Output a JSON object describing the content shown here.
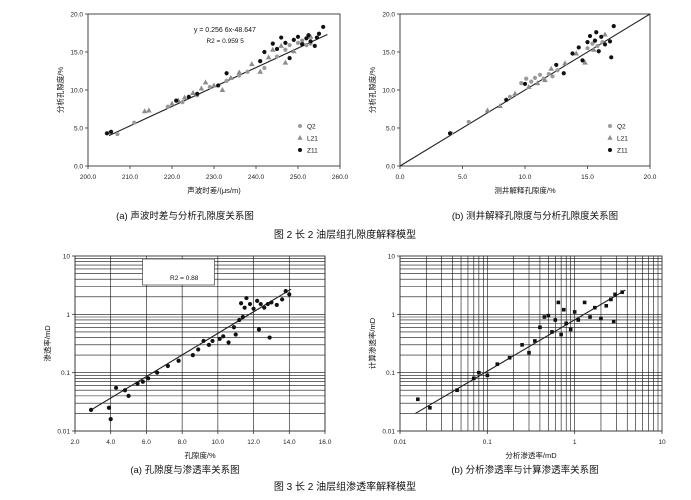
{
  "figure_2": {
    "caption": "图 2  长 2 油层组孔隙度解释模型",
    "subcaptions": [
      "(a) 声波时差与分析孔隙度关系图",
      "(b) 测井解释孔隙度与分析孔隙度关系图"
    ]
  },
  "figure_3": {
    "caption": "图 3  长 2 油层组渗透率解释模型",
    "subcaptions": [
      "(a) 孔隙度与渗透率关系图",
      "(b) 分析渗透率与计算渗透率关系图"
    ]
  },
  "legend_labels": [
    "Q2",
    "L21",
    "Z11"
  ],
  "colors": {
    "Q2": "#9a9a9a",
    "L21": "#8c8c8c",
    "Z11": "#111111",
    "axis": "#333333",
    "grid": "#111111",
    "line": "#222222"
  },
  "chart_data": [
    {
      "id": "2a",
      "type": "scatter",
      "xlabel": "声波时差/(μs/m)",
      "ylabel": "分析孔隙度/%",
      "xlim": [
        200,
        260
      ],
      "ylim": [
        0,
        20
      ],
      "xticks": [
        "200.0",
        "210.0",
        "220.0",
        "230.0",
        "240.0",
        "250.0",
        "260.0"
      ],
      "yticks": [
        "0.0",
        "5.0",
        "10.0",
        "15.0",
        "20.0"
      ],
      "equation": "y = 0.256 6x-48.647",
      "r2": "R2 = 0.959 5",
      "fit": {
        "x": [
          205,
          257
        ],
        "y": [
          4.0,
          17.3
        ]
      },
      "grid": false,
      "legend": "bottom-right",
      "series": [
        {
          "name": "Q2",
          "marker": "circle",
          "points": [
            [
              205.2,
              4.4
            ],
            [
              207,
              4.2
            ],
            [
              211,
              5.7
            ],
            [
              219,
              7.8
            ],
            [
              222.5,
              8.4
            ],
            [
              226,
              9.3
            ],
            [
              229,
              10.4
            ],
            [
              233,
              11.2
            ],
            [
              236,
              11.9
            ],
            [
              238,
              12.4
            ],
            [
              242,
              12.9
            ],
            [
              245,
              14.4
            ],
            [
              247,
              15.3
            ],
            [
              248,
              15.9
            ],
            [
              250,
              16.2
            ],
            [
              251,
              16.5
            ],
            [
              252,
              15.9
            ],
            [
              253,
              16.1
            ]
          ]
        },
        {
          "name": "L21",
          "marker": "triangle",
          "points": [
            [
              213.5,
              7.2
            ],
            [
              214.5,
              7.3
            ],
            [
              220,
              8.2
            ],
            [
              221.5,
              8.6
            ],
            [
              223,
              9.0
            ],
            [
              225,
              9.6
            ],
            [
              227,
              10.2
            ],
            [
              228,
              11.0
            ],
            [
              230,
              10.6
            ],
            [
              232,
              10.0
            ],
            [
              234,
              11.6
            ],
            [
              236,
              12.3
            ],
            [
              239,
              13.4
            ],
            [
              241,
              12.4
            ],
            [
              243,
              14.3
            ],
            [
              244,
              15.3
            ],
            [
              246,
              15.8
            ],
            [
              247,
              13.6
            ],
            [
              249,
              15.1
            ],
            [
              251,
              16.3
            ],
            [
              253,
              17.0
            ]
          ]
        },
        {
          "name": "Z11",
          "marker": "circle",
          "points": [
            [
              204.5,
              4.3
            ],
            [
              205.5,
              4.5
            ],
            [
              221,
              8.6
            ],
            [
              224,
              9.1
            ],
            [
              226,
              9.5
            ],
            [
              231,
              10.6
            ],
            [
              233,
              12.2
            ],
            [
              241,
              13.8
            ],
            [
              242,
              15.0
            ],
            [
              244,
              16.1
            ],
            [
              245,
              15.4
            ],
            [
              246,
              16.9
            ],
            [
              247,
              16.2
            ],
            [
              248,
              14.2
            ],
            [
              249,
              16.6
            ],
            [
              250,
              17.0
            ],
            [
              251,
              16.0
            ],
            [
              252,
              16.8
            ],
            [
              252.5,
              17.2
            ],
            [
              253,
              16.4
            ],
            [
              254,
              15.8
            ],
            [
              254.5,
              16.9
            ],
            [
              255,
              17.4
            ],
            [
              256,
              18.3
            ]
          ]
        }
      ]
    },
    {
      "id": "2b",
      "type": "scatter",
      "xlabel": "测井解释孔隙度/%",
      "ylabel": "分析孔隙度/%",
      "xlim": [
        0,
        20
      ],
      "ylim": [
        0,
        20
      ],
      "xticks": [
        "0.0",
        "5.0",
        "10.0",
        "15.0",
        "20.0"
      ],
      "yticks": [
        "0.0",
        "5.0",
        "10.0",
        "15.0",
        "20.0"
      ],
      "fit": {
        "x": [
          0,
          20
        ],
        "y": [
          0,
          20
        ]
      },
      "grid": false,
      "legend": "bottom-right",
      "series": [
        {
          "name": "Q2",
          "marker": "circle",
          "points": [
            [
              4.1,
              4.3
            ],
            [
              5.5,
              5.8
            ],
            [
              8.8,
              9.1
            ],
            [
              9.7,
              10.9
            ],
            [
              10.1,
              11.5
            ],
            [
              10.5,
              11.1
            ],
            [
              10.8,
              11.6
            ],
            [
              11.2,
              12.0
            ],
            [
              11.5,
              11.5
            ],
            [
              11.9,
              12.1
            ],
            [
              12.2,
              11.8
            ],
            [
              12.6,
              12.6
            ],
            [
              15.0,
              15.5
            ],
            [
              15.4,
              16.1
            ],
            [
              15.8,
              15.8
            ],
            [
              16.2,
              16.3
            ]
          ]
        },
        {
          "name": "L21",
          "marker": "triangle",
          "points": [
            [
              7.0,
              7.3
            ],
            [
              8.0,
              7.9
            ],
            [
              9.2,
              9.5
            ],
            [
              10.3,
              10.4
            ],
            [
              11.0,
              10.9
            ],
            [
              11.6,
              11.3
            ],
            [
              12.1,
              12.8
            ],
            [
              13.2,
              13.5
            ],
            [
              14.1,
              14.8
            ],
            [
              14.8,
              13.6
            ],
            [
              15.5,
              15.3
            ],
            [
              16.4,
              17.3
            ]
          ]
        },
        {
          "name": "Z11",
          "marker": "circle",
          "points": [
            [
              4.0,
              4.3
            ],
            [
              8.5,
              8.7
            ],
            [
              10.0,
              10.8
            ],
            [
              12.5,
              13.3
            ],
            [
              13.1,
              12.2
            ],
            [
              13.8,
              14.8
            ],
            [
              14.3,
              15.6
            ],
            [
              14.6,
              13.9
            ],
            [
              15.0,
              16.3
            ],
            [
              15.2,
              17.1
            ],
            [
              15.6,
              16.5
            ],
            [
              15.9,
              15.1
            ],
            [
              16.1,
              17.0
            ],
            [
              16.4,
              16.0
            ],
            [
              16.8,
              16.4
            ],
            [
              17.1,
              18.4
            ],
            [
              16.9,
              14.3
            ],
            [
              15.7,
              17.6
            ]
          ]
        }
      ]
    },
    {
      "id": "3a",
      "type": "scatter",
      "xlabel": "孔隙度/%",
      "ylabel": "渗透率/mD",
      "xlim": [
        2,
        16
      ],
      "ylim": [
        0.01,
        10
      ],
      "yscale": "log",
      "xticks": [
        "2.0",
        "4.0",
        "6.0",
        "8.0",
        "10.0",
        "12.0",
        "14.0",
        "16.0"
      ],
      "yticks": [
        "0.01",
        "0.1",
        "1",
        "10"
      ],
      "r2": "R2 = 0.88",
      "fit": {
        "x": [
          2.8,
          14.1
        ],
        "y": [
          0.022,
          2.7
        ]
      },
      "grid": true,
      "series": [
        {
          "name": "",
          "marker": "circle",
          "points": [
            [
              2.9,
              0.023
            ],
            [
              3.9,
              0.025
            ],
            [
              4.0,
              0.016
            ],
            [
              4.3,
              0.055
            ],
            [
              4.8,
              0.05
            ],
            [
              5.0,
              0.04
            ],
            [
              5.5,
              0.065
            ],
            [
              5.8,
              0.07
            ],
            [
              6.1,
              0.08
            ],
            [
              6.6,
              0.1
            ],
            [
              7.2,
              0.13
            ],
            [
              7.8,
              0.16
            ],
            [
              8.6,
              0.2
            ],
            [
              8.9,
              0.25
            ],
            [
              9.2,
              0.35
            ],
            [
              9.5,
              0.3
            ],
            [
              9.7,
              0.35
            ],
            [
              10.1,
              0.38
            ],
            [
              10.3,
              0.42
            ],
            [
              10.6,
              0.33
            ],
            [
              10.9,
              0.6
            ],
            [
              11.0,
              0.45
            ],
            [
              11.2,
              0.8
            ],
            [
              11.3,
              1.55
            ],
            [
              11.5,
              1.3
            ],
            [
              11.6,
              1.9
            ],
            [
              11.8,
              1.5
            ],
            [
              12.0,
              1.25
            ],
            [
              12.2,
              1.7
            ],
            [
              12.4,
              1.5
            ],
            [
              12.6,
              1.3
            ],
            [
              12.8,
              1.5
            ],
            [
              13.0,
              1.6
            ],
            [
              13.3,
              1.45
            ],
            [
              13.6,
              1.8
            ],
            [
              13.8,
              2.5
            ],
            [
              14.0,
              2.2
            ],
            [
              12.3,
              0.55
            ],
            [
              11.4,
              0.9
            ],
            [
              12.9,
              0.4
            ]
          ]
        }
      ]
    },
    {
      "id": "3b",
      "type": "scatter",
      "xlabel": "分析渗透率/mD",
      "ylabel": "计算渗透率/mD",
      "xlim": [
        0.01,
        10
      ],
      "ylim": [
        0.01,
        10
      ],
      "xscale": "log",
      "yscale": "log",
      "xticks": [
        "0.01",
        "0.1",
        "1",
        "10"
      ],
      "yticks": [
        "0.01",
        "0.1",
        "1",
        "10"
      ],
      "fit": {
        "x": [
          0.015,
          3.8
        ],
        "y": [
          0.02,
          2.6
        ]
      },
      "grid": true,
      "series": [
        {
          "name": "",
          "marker": "square",
          "points": [
            [
              0.016,
              0.035
            ],
            [
              0.022,
              0.025
            ],
            [
              0.045,
              0.05
            ],
            [
              0.07,
              0.08
            ],
            [
              0.08,
              0.1
            ],
            [
              0.1,
              0.09
            ],
            [
              0.13,
              0.14
            ],
            [
              0.18,
              0.18
            ],
            [
              0.25,
              0.3
            ],
            [
              0.3,
              0.22
            ],
            [
              0.35,
              0.35
            ],
            [
              0.4,
              0.6
            ],
            [
              0.45,
              0.9
            ],
            [
              0.5,
              0.95
            ],
            [
              0.55,
              0.5
            ],
            [
              0.6,
              0.8
            ],
            [
              0.65,
              1.6
            ],
            [
              0.7,
              0.45
            ],
            [
              0.75,
              1.2
            ],
            [
              0.8,
              0.7
            ],
            [
              0.9,
              0.55
            ],
            [
              1.0,
              1.1
            ],
            [
              1.1,
              0.8
            ],
            [
              1.3,
              1.6
            ],
            [
              1.5,
              0.9
            ],
            [
              1.7,
              1.3
            ],
            [
              2.0,
              0.85
            ],
            [
              2.3,
              1.4
            ],
            [
              2.6,
              1.8
            ],
            [
              2.9,
              2.2
            ],
            [
              3.5,
              2.4
            ],
            [
              2.8,
              0.75
            ]
          ]
        }
      ]
    }
  ]
}
